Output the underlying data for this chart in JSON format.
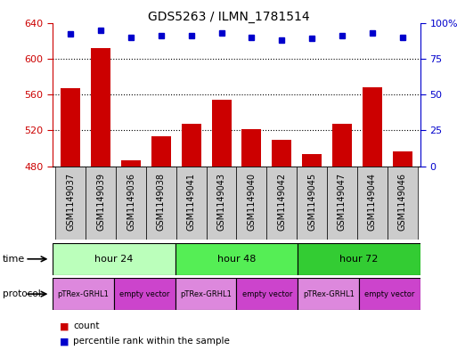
{
  "title": "GDS5263 / ILMN_1781514",
  "samples": [
    "GSM1149037",
    "GSM1149039",
    "GSM1149036",
    "GSM1149038",
    "GSM1149041",
    "GSM1149043",
    "GSM1149040",
    "GSM1149042",
    "GSM1149045",
    "GSM1149047",
    "GSM1149044",
    "GSM1149046"
  ],
  "counts": [
    567,
    612,
    487,
    513,
    527,
    554,
    521,
    509,
    494,
    527,
    568,
    497
  ],
  "percentile_ranks": [
    92,
    95,
    90,
    91,
    91,
    93,
    90,
    88,
    89,
    91,
    93,
    90
  ],
  "ylim_left": [
    480,
    640
  ],
  "ylim_right": [
    0,
    100
  ],
  "yticks_left": [
    480,
    520,
    560,
    600,
    640
  ],
  "yticks_right": [
    0,
    25,
    50,
    75,
    100
  ],
  "bar_color": "#cc0000",
  "dot_color": "#0000cc",
  "bg_color": "#ffffff",
  "sample_box_color": "#cccccc",
  "time_groups": [
    {
      "label": "hour 24",
      "start": 0,
      "end": 4,
      "color": "#bbffbb"
    },
    {
      "label": "hour 48",
      "start": 4,
      "end": 8,
      "color": "#55ee55"
    },
    {
      "label": "hour 72",
      "start": 8,
      "end": 12,
      "color": "#33cc33"
    }
  ],
  "protocol_groups": [
    {
      "label": "pTRex-GRHL1",
      "start": 0,
      "end": 2,
      "color": "#dd88dd"
    },
    {
      "label": "empty vector",
      "start": 2,
      "end": 4,
      "color": "#cc44cc"
    },
    {
      "label": "pTRex-GRHL1",
      "start": 4,
      "end": 6,
      "color": "#dd88dd"
    },
    {
      "label": "empty vector",
      "start": 6,
      "end": 8,
      "color": "#cc44cc"
    },
    {
      "label": "pTRex-GRHL1",
      "start": 8,
      "end": 10,
      "color": "#dd88dd"
    },
    {
      "label": "empty vector",
      "start": 10,
      "end": 12,
      "color": "#cc44cc"
    }
  ],
  "label_fontsize": 7,
  "title_fontsize": 10,
  "tick_fontsize": 8,
  "annot_fontsize": 7.5
}
